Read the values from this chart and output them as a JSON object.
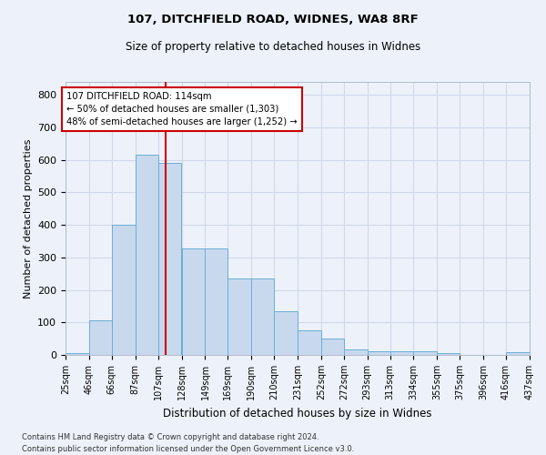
{
  "title1": "107, DITCHFIELD ROAD, WIDNES, WA8 8RF",
  "title2": "Size of property relative to detached houses in Widnes",
  "xlabel": "Distribution of detached houses by size in Widnes",
  "ylabel": "Number of detached properties",
  "annotation_line1": "107 DITCHFIELD ROAD: 114sqm",
  "annotation_line2": "← 50% of detached houses are smaller (1,303)",
  "annotation_line3": "48% of semi-detached houses are larger (1,252) →",
  "property_size": 114,
  "bin_edges": [
    25,
    46,
    66,
    87,
    107,
    128,
    149,
    169,
    190,
    210,
    231,
    252,
    272,
    293,
    313,
    334,
    355,
    375,
    396,
    416,
    437
  ],
  "bar_heights": [
    5,
    107,
    400,
    615,
    590,
    328,
    328,
    235,
    235,
    135,
    77,
    50,
    18,
    12,
    12,
    12,
    5,
    0,
    0,
    8
  ],
  "bar_color": "#c8d9ee",
  "bar_edge_color": "#6aaed6",
  "vline_color": "#cc0000",
  "grid_color": "#d0d8e8",
  "annotation_box_edge_color": "#cc0000",
  "annotation_box_face_color": "#ffffff",
  "background_color": "#edf2fa",
  "footer1": "Contains HM Land Registry data © Crown copyright and database right 2024.",
  "footer2": "Contains public sector information licensed under the Open Government Licence v3.0.",
  "ylim": [
    0,
    840
  ],
  "yticks": [
    0,
    100,
    200,
    300,
    400,
    500,
    600,
    700,
    800
  ],
  "xlim": [
    25,
    437
  ]
}
